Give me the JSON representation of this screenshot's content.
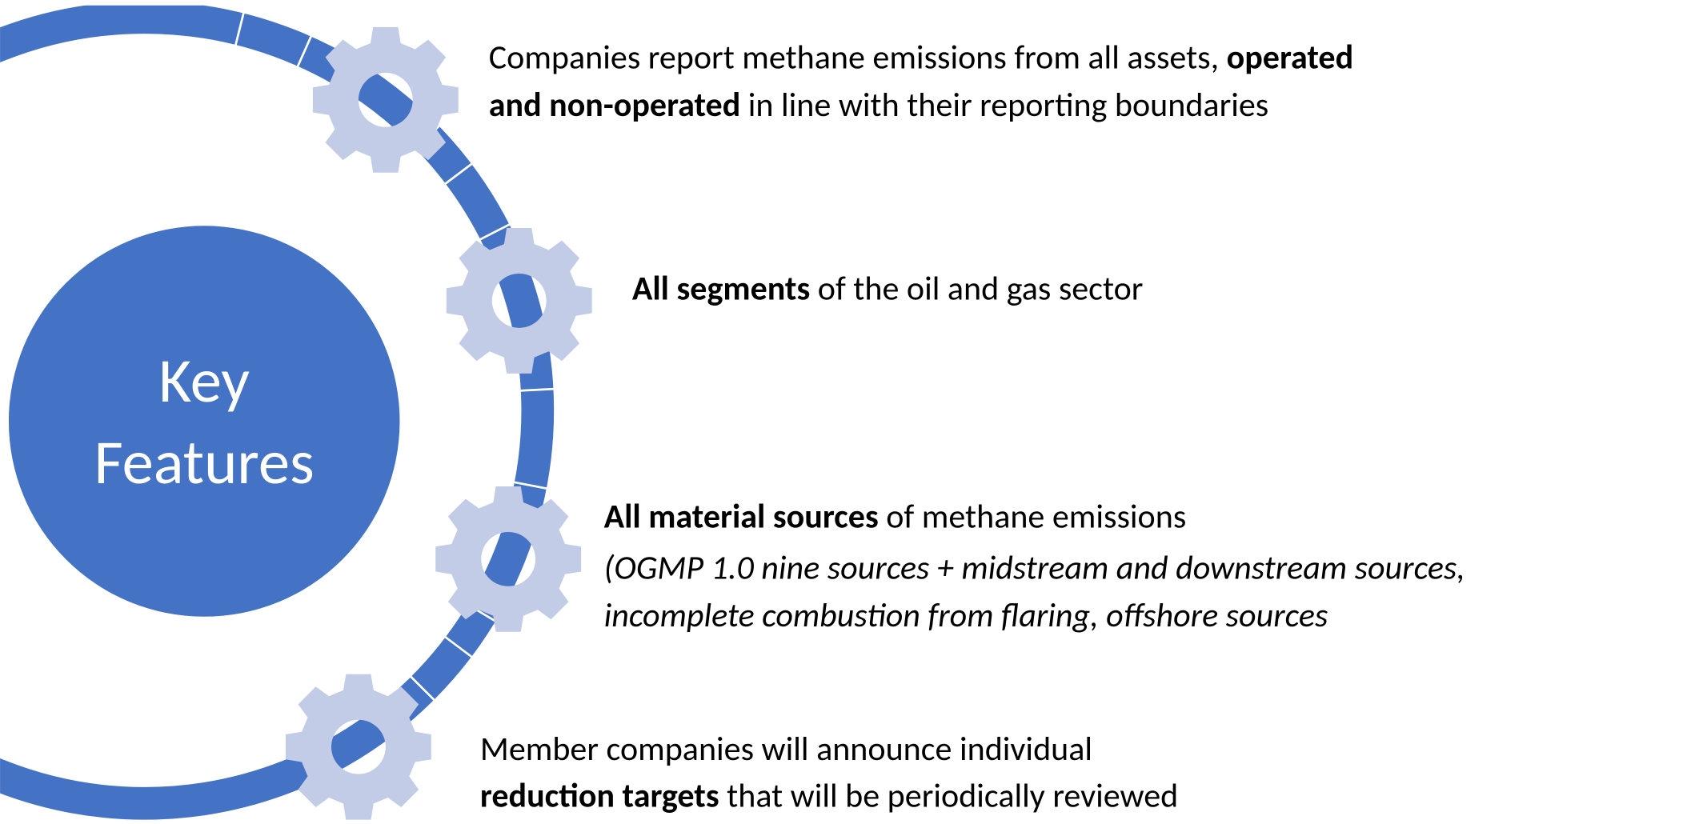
{
  "center": {
    "label": [
      "Key",
      "Features"
    ]
  },
  "items": [
    {
      "lines": [
        [
          {
            "text": "Companies report methane emissions from all assets, "
          },
          {
            "text": "operated",
            "bold": true
          }
        ],
        [
          {
            "text": "and non-operated",
            "bold": true
          },
          {
            "text": " in line with their reporting boundaries"
          }
        ]
      ]
    },
    {
      "lines": [
        [
          {
            "text": "All segments",
            "bold": true
          },
          {
            "text": " of the oil and gas sector"
          }
        ]
      ]
    },
    {
      "lines": [
        [
          {
            "text": "All material sources",
            "bold": true
          },
          {
            "text": " of methane emissions"
          }
        ],
        [
          {
            "text": "(OGMP 1.0 nine sources + midstream and downstream sources,",
            "italic": true
          }
        ],
        [
          {
            "text": "incomplete combustion from flaring, offshore sources",
            "italic": true
          }
        ]
      ]
    },
    {
      "lines": [
        [
          {
            "text": "Member companies will announce individual"
          }
        ],
        [
          {
            "text": "reduction targets",
            "bold": true
          },
          {
            "text": " that will be periodically reviewed"
          }
        ]
      ]
    }
  ]
}
